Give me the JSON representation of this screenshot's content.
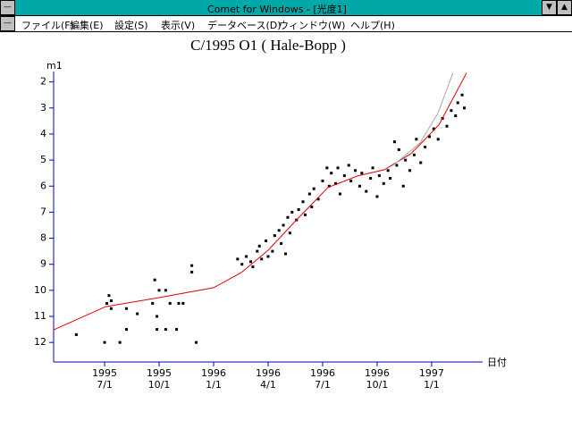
{
  "window": {
    "title": "Comet for Windows - [光度1]",
    "menu": [
      "ファイル(F)",
      "編集(E)",
      "設定(S)",
      "表示(V)",
      "データベース(D)",
      "ウィンドウ(W)",
      "ヘルプ(H)"
    ]
  },
  "chart_data": {
    "type": "scatter",
    "title": "C/1995 O1 ( Hale-Bopp )",
    "y_label": "m1",
    "x_label": "日付",
    "xlim": [
      1995.266,
      1997.234
    ],
    "ylim": [
      12.75,
      1.6
    ],
    "yticks": [
      2,
      3,
      4,
      5,
      6,
      7,
      8,
      9,
      10,
      11,
      12
    ],
    "xticks": [
      {
        "value": 1995.5,
        "label": "1995\n7/1"
      },
      {
        "value": 1995.75,
        "label": "1995\n10/1"
      },
      {
        "value": 1996.0,
        "label": "1996\n1/1"
      },
      {
        "value": 1996.25,
        "label": "1996\n4/1"
      },
      {
        "value": 1996.5,
        "label": "1996\n7/1"
      },
      {
        "value": 1996.75,
        "label": "1996\n10/1"
      },
      {
        "value": 1997.0,
        "label": "1997\n1/1"
      }
    ],
    "series": [
      {
        "type": "scatter",
        "color": "#000000",
        "x": [
          1995.37,
          1995.5,
          1995.51,
          1995.52,
          1995.53,
          1995.53,
          1995.57,
          1995.6,
          1995.6,
          1995.65,
          1995.72,
          1995.73,
          1995.74,
          1995.74,
          1995.75,
          1995.78,
          1995.78,
          1995.8,
          1995.83,
          1995.84,
          1995.86,
          1995.9,
          1995.9,
          1995.92,
          1996.11,
          1996.13,
          1996.15,
          1996.17,
          1996.18,
          1996.2,
          1996.21,
          1996.22,
          1996.24,
          1996.25,
          1996.27,
          1996.28,
          1996.3,
          1996.31,
          1996.32,
          1996.33,
          1996.34,
          1996.35,
          1996.36,
          1996.38,
          1996.39,
          1996.41,
          1996.42,
          1996.44,
          1996.45,
          1996.46,
          1996.48,
          1996.5,
          1996.52,
          1996.53,
          1996.54,
          1996.56,
          1996.57,
          1996.58,
          1996.6,
          1996.62,
          1996.63,
          1996.65,
          1996.67,
          1996.68,
          1996.7,
          1996.72,
          1996.73,
          1996.75,
          1996.76,
          1996.78,
          1996.8,
          1996.81,
          1996.83,
          1996.84,
          1996.85,
          1996.87,
          1996.88,
          1996.9,
          1996.92,
          1996.93,
          1996.95,
          1996.97,
          1996.99,
          1997.01,
          1997.03,
          1997.05,
          1997.07,
          1997.09,
          1997.11,
          1997.12,
          1997.14,
          1997.15
        ],
        "values": [
          11.7,
          12.0,
          10.5,
          10.2,
          10.4,
          10.7,
          12.0,
          11.5,
          10.7,
          10.9,
          10.5,
          9.6,
          11.0,
          11.5,
          10.0,
          10.0,
          11.5,
          10.5,
          11.5,
          10.5,
          10.5,
          9.05,
          9.3,
          12.0,
          8.8,
          9.0,
          8.7,
          8.9,
          9.1,
          8.5,
          8.3,
          8.8,
          8.1,
          8.7,
          8.5,
          7.9,
          7.7,
          8.2,
          7.5,
          8.6,
          7.2,
          7.8,
          7.0,
          7.3,
          6.9,
          6.6,
          7.1,
          6.3,
          6.8,
          6.1,
          6.5,
          5.8,
          5.3,
          6.0,
          5.5,
          5.9,
          5.3,
          6.3,
          5.6,
          5.2,
          5.8,
          5.4,
          6.0,
          5.5,
          6.2,
          5.7,
          5.3,
          6.4,
          5.6,
          5.9,
          5.4,
          5.7,
          4.3,
          5.2,
          4.6,
          6.0,
          5.0,
          5.4,
          4.8,
          4.2,
          5.1,
          4.5,
          4.1,
          3.8,
          4.2,
          3.4,
          3.7,
          3.1,
          3.3,
          2.8,
          2.5,
          3.0
        ]
      },
      {
        "type": "line",
        "color": "#e00000",
        "x": [
          1995.266,
          1995.504,
          1995.75,
          1996.0,
          1996.127,
          1996.25,
          1996.373,
          1996.525,
          1996.66,
          1996.783,
          1996.906,
          1997.033,
          1997.16
        ],
        "values": [
          11.52,
          10.63,
          10.28,
          9.9,
          9.32,
          8.46,
          7.36,
          6.05,
          5.61,
          5.37,
          4.75,
          3.65,
          1.66
        ]
      },
      {
        "type": "line",
        "color": "#a8a8a8",
        "x": [
          1996.824,
          1996.947,
          1997.029,
          1997.098
        ],
        "values": [
          5.2,
          4.34,
          3.2,
          1.66
        ]
      }
    ]
  }
}
